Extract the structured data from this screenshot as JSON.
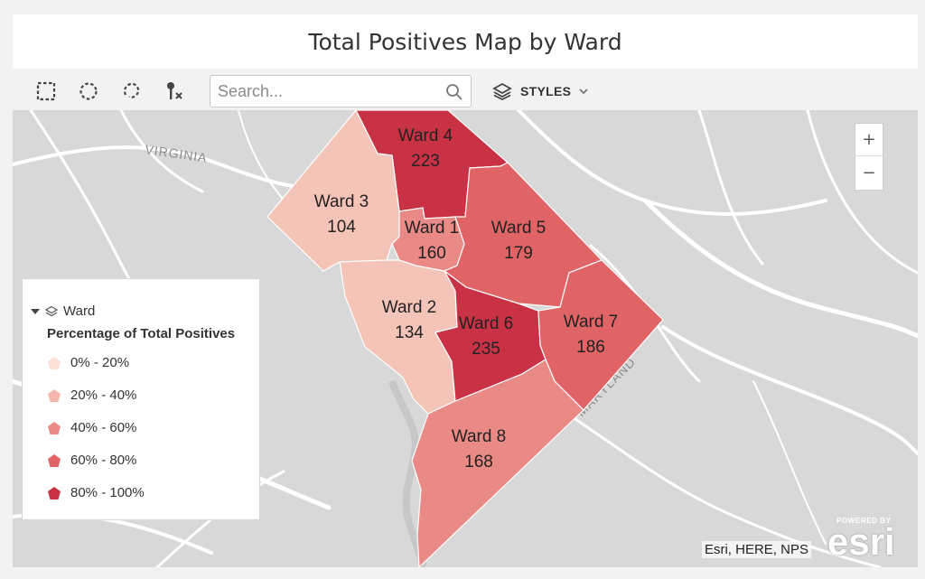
{
  "title": "Total Positives Map by Ward",
  "toolbar": {
    "tools": [
      {
        "name": "rectangle-select-icon"
      },
      {
        "name": "circle-select-icon"
      },
      {
        "name": "lasso-select-icon"
      },
      {
        "name": "clear-selection-icon"
      }
    ],
    "search_placeholder": "Search...",
    "search_icon": "magnifier-icon",
    "layers_icon": "layers-icon",
    "styles_label": "STYLES",
    "styles_chevron": "chevron-down-icon"
  },
  "map": {
    "place_labels": {
      "virginia": "VIRGINIA",
      "maryland": "MARYLAND"
    },
    "wards": [
      {
        "name": "Ward 1",
        "value": "160",
        "color": "#ea8a86"
      },
      {
        "name": "Ward 2",
        "value": "134",
        "color": "#f5c4b8"
      },
      {
        "name": "Ward 3",
        "value": "104",
        "color": "#f5c4b8"
      },
      {
        "name": "Ward 4",
        "value": "223",
        "color": "#c93245"
      },
      {
        "name": "Ward 5",
        "value": "179",
        "color": "#e06466"
      },
      {
        "name": "Ward 6",
        "value": "235",
        "color": "#c93245"
      },
      {
        "name": "Ward 7",
        "value": "186",
        "color": "#e06466"
      },
      {
        "name": "Ward 8",
        "value": "168",
        "color": "#ea8a86"
      }
    ],
    "zoom_in": "+",
    "zoom_out": "−",
    "attribution": "Esri, HERE, NPS",
    "powered_by": "POWERED BY",
    "esri_logo": "esri"
  },
  "legend": {
    "layer_name": "Ward",
    "title": "Percentage of Total Positives",
    "classes": [
      {
        "label": "0% - 20%",
        "color": "#fbe0d8"
      },
      {
        "label": "20% - 40%",
        "color": "#f5b7ad"
      },
      {
        "label": "40% - 60%",
        "color": "#ea8a86"
      },
      {
        "label": "60% - 80%",
        "color": "#e06466"
      },
      {
        "label": "80% - 100%",
        "color": "#c93245"
      }
    ]
  }
}
